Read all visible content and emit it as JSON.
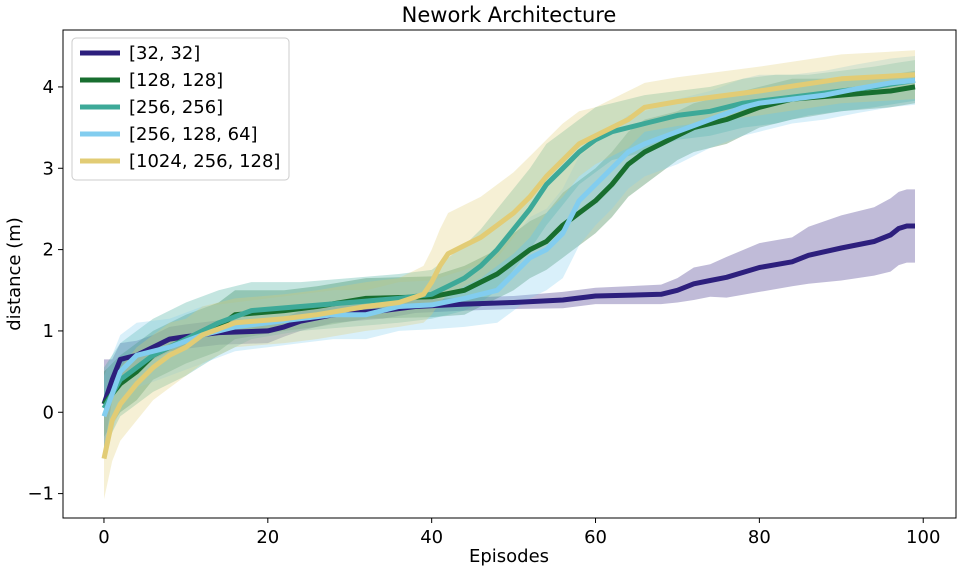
{
  "chart_data": {
    "type": "line",
    "title": "Nework Architecture",
    "xlabel": "Episodes",
    "ylabel": "distance (m)",
    "xlim": [
      -5,
      104
    ],
    "ylim": [
      -1.3,
      4.7
    ],
    "xticks": [
      0,
      20,
      40,
      60,
      80,
      100
    ],
    "yticks": [
      -1,
      0,
      1,
      2,
      3,
      4
    ],
    "xtick_labels": [
      "0",
      "20",
      "40",
      "60",
      "80",
      "100"
    ],
    "ytick_labels": [
      "−1",
      "0",
      "1",
      "2",
      "3",
      "4"
    ],
    "grid": false,
    "legend_position": "top-left",
    "series": [
      {
        "name": "[32, 32]",
        "color": "#2d1f7d",
        "points": [
          [
            0,
            0.1
          ],
          [
            1,
            0.4
          ],
          [
            2,
            0.65
          ],
          [
            4,
            0.7
          ],
          [
            6,
            0.8
          ],
          [
            8,
            0.9
          ],
          [
            10,
            0.93
          ],
          [
            14,
            0.98
          ],
          [
            20,
            1.0
          ],
          [
            22,
            1.05
          ],
          [
            24,
            1.12
          ],
          [
            28,
            1.2
          ],
          [
            34,
            1.25
          ],
          [
            38,
            1.3
          ],
          [
            44,
            1.33
          ],
          [
            50,
            1.35
          ],
          [
            56,
            1.38
          ],
          [
            60,
            1.43
          ],
          [
            68,
            1.45
          ],
          [
            70,
            1.5
          ],
          [
            72,
            1.58
          ],
          [
            74,
            1.62
          ],
          [
            76,
            1.66
          ],
          [
            80,
            1.78
          ],
          [
            84,
            1.85
          ],
          [
            86,
            1.93
          ],
          [
            90,
            2.02
          ],
          [
            94,
            2.1
          ],
          [
            96,
            2.18
          ],
          [
            97,
            2.26
          ],
          [
            98,
            2.29
          ],
          [
            99,
            2.29
          ]
        ],
        "band": [
          0.55,
          0.25,
          0.2,
          0.18,
          0.15,
          0.15,
          0.15,
          0.15,
          0.15,
          0.12,
          0.12,
          0.1,
          0.1,
          0.08,
          0.08,
          0.08,
          0.1,
          0.1,
          0.12,
          0.15,
          0.2,
          0.2,
          0.25,
          0.3,
          0.3,
          0.35,
          0.4,
          0.42,
          0.45,
          0.45,
          0.45,
          0.45
        ]
      },
      {
        "name": "[128, 128]",
        "color": "#186e2f",
        "points": [
          [
            0,
            0.1
          ],
          [
            2,
            0.35
          ],
          [
            4,
            0.5
          ],
          [
            6,
            0.7
          ],
          [
            10,
            0.9
          ],
          [
            14,
            1.05
          ],
          [
            16,
            1.2
          ],
          [
            22,
            1.25
          ],
          [
            26,
            1.3
          ],
          [
            32,
            1.4
          ],
          [
            40,
            1.42
          ],
          [
            44,
            1.5
          ],
          [
            46,
            1.6
          ],
          [
            48,
            1.7
          ],
          [
            50,
            1.85
          ],
          [
            52,
            2.0
          ],
          [
            54,
            2.1
          ],
          [
            56,
            2.3
          ],
          [
            58,
            2.45
          ],
          [
            60,
            2.6
          ],
          [
            62,
            2.8
          ],
          [
            64,
            3.05
          ],
          [
            66,
            3.2
          ],
          [
            68,
            3.3
          ],
          [
            70,
            3.4
          ],
          [
            72,
            3.5
          ],
          [
            76,
            3.6
          ],
          [
            80,
            3.75
          ],
          [
            84,
            3.85
          ],
          [
            90,
            3.9
          ],
          [
            96,
            3.95
          ],
          [
            99,
            4.0
          ]
        ],
        "band": [
          0.4,
          0.35,
          0.35,
          0.3,
          0.3,
          0.3,
          0.3,
          0.25,
          0.25,
          0.25,
          0.25,
          0.3,
          0.3,
          0.3,
          0.35,
          0.35,
          0.35,
          0.4,
          0.4,
          0.4,
          0.4,
          0.4,
          0.4,
          0.35,
          0.3,
          0.3,
          0.3,
          0.25,
          0.25,
          0.2,
          0.2,
          0.2
        ]
      },
      {
        "name": "[256, 256]",
        "color": "#3da998",
        "points": [
          [
            0,
            0.05
          ],
          [
            2,
            0.4
          ],
          [
            4,
            0.55
          ],
          [
            6,
            0.7
          ],
          [
            10,
            0.9
          ],
          [
            14,
            1.1
          ],
          [
            18,
            1.25
          ],
          [
            24,
            1.3
          ],
          [
            30,
            1.35
          ],
          [
            36,
            1.4
          ],
          [
            40,
            1.45
          ],
          [
            42,
            1.55
          ],
          [
            44,
            1.65
          ],
          [
            46,
            1.8
          ],
          [
            48,
            2.0
          ],
          [
            50,
            2.25
          ],
          [
            52,
            2.5
          ],
          [
            54,
            2.8
          ],
          [
            56,
            3.0
          ],
          [
            58,
            3.2
          ],
          [
            60,
            3.35
          ],
          [
            62,
            3.45
          ],
          [
            66,
            3.55
          ],
          [
            70,
            3.65
          ],
          [
            74,
            3.7
          ],
          [
            78,
            3.8
          ],
          [
            82,
            3.85
          ],
          [
            86,
            3.9
          ],
          [
            90,
            3.95
          ],
          [
            94,
            4.0
          ],
          [
            97,
            4.05
          ],
          [
            99,
            4.08
          ]
        ],
        "band": [
          0.5,
          0.45,
          0.45,
          0.45,
          0.45,
          0.4,
          0.35,
          0.3,
          0.3,
          0.3,
          0.3,
          0.35,
          0.4,
          0.45,
          0.5,
          0.5,
          0.5,
          0.5,
          0.45,
          0.4,
          0.4,
          0.35,
          0.35,
          0.3,
          0.3,
          0.3,
          0.3,
          0.25,
          0.25,
          0.25,
          0.25,
          0.25
        ]
      },
      {
        "name": "[256, 128, 64]",
        "color": "#82cdef",
        "points": [
          [
            0,
            -0.05
          ],
          [
            2,
            0.5
          ],
          [
            4,
            0.7
          ],
          [
            8,
            0.8
          ],
          [
            12,
            0.95
          ],
          [
            16,
            1.05
          ],
          [
            20,
            1.1
          ],
          [
            24,
            1.15
          ],
          [
            28,
            1.2
          ],
          [
            32,
            1.2
          ],
          [
            36,
            1.3
          ],
          [
            40,
            1.32
          ],
          [
            44,
            1.4
          ],
          [
            48,
            1.5
          ],
          [
            50,
            1.7
          ],
          [
            52,
            1.9
          ],
          [
            54,
            2.0
          ],
          [
            56,
            2.2
          ],
          [
            58,
            2.6
          ],
          [
            60,
            2.8
          ],
          [
            62,
            3.0
          ],
          [
            64,
            3.2
          ],
          [
            66,
            3.3
          ],
          [
            70,
            3.45
          ],
          [
            74,
            3.6
          ],
          [
            78,
            3.75
          ],
          [
            80,
            3.8
          ],
          [
            84,
            3.85
          ],
          [
            88,
            3.9
          ],
          [
            92,
            3.98
          ],
          [
            96,
            4.05
          ],
          [
            99,
            4.08
          ]
        ],
        "band": [
          0.5,
          0.45,
          0.4,
          0.35,
          0.35,
          0.3,
          0.3,
          0.3,
          0.3,
          0.3,
          0.3,
          0.3,
          0.35,
          0.4,
          0.45,
          0.5,
          0.5,
          0.55,
          0.55,
          0.5,
          0.5,
          0.45,
          0.4,
          0.4,
          0.35,
          0.35,
          0.35,
          0.3,
          0.3,
          0.3,
          0.3,
          0.3
        ]
      },
      {
        "name": "[1024, 256, 128]",
        "color": "#e2cc75",
        "points": [
          [
            0,
            -0.57
          ],
          [
            1,
            -0.1
          ],
          [
            2,
            0.1
          ],
          [
            4,
            0.35
          ],
          [
            6,
            0.55
          ],
          [
            8,
            0.7
          ],
          [
            10,
            0.8
          ],
          [
            12,
            0.95
          ],
          [
            16,
            1.1
          ],
          [
            22,
            1.15
          ],
          [
            26,
            1.2
          ],
          [
            32,
            1.3
          ],
          [
            36,
            1.35
          ],
          [
            39,
            1.45
          ],
          [
            40,
            1.6
          ],
          [
            41,
            1.8
          ],
          [
            42,
            1.95
          ],
          [
            44,
            2.05
          ],
          [
            46,
            2.15
          ],
          [
            48,
            2.3
          ],
          [
            50,
            2.45
          ],
          [
            52,
            2.65
          ],
          [
            54,
            2.9
          ],
          [
            56,
            3.1
          ],
          [
            58,
            3.3
          ],
          [
            60,
            3.4
          ],
          [
            64,
            3.6
          ],
          [
            66,
            3.75
          ],
          [
            70,
            3.82
          ],
          [
            80,
            3.95
          ],
          [
            90,
            4.1
          ],
          [
            99,
            4.15
          ]
        ],
        "band": [
          0.5,
          0.5,
          0.45,
          0.45,
          0.4,
          0.4,
          0.35,
          0.35,
          0.3,
          0.3,
          0.3,
          0.3,
          0.3,
          0.35,
          0.4,
          0.45,
          0.5,
          0.5,
          0.5,
          0.5,
          0.5,
          0.5,
          0.45,
          0.45,
          0.4,
          0.35,
          0.35,
          0.3,
          0.3,
          0.3,
          0.3,
          0.3
        ]
      }
    ]
  }
}
